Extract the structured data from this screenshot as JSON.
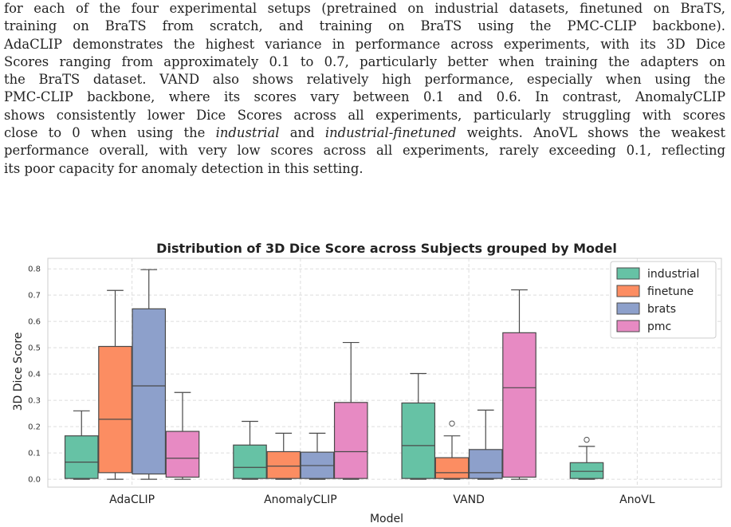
{
  "paragraph": {
    "lines": [
      [
        "for each of the four experimental setups (pretrained on industrial datasets, finetuned on BraTS,"
      ],
      [
        "training on BraTS from scratch, and training on BraTS using the PMC-CLIP backbone)."
      ],
      [
        "AdaCLIP demonstrates the highest variance in performance across experiments, with its 3D Dice"
      ],
      [
        "Scores ranging from approximately 0.1 to 0.7, particularly better when training the adapters on"
      ],
      [
        "the BraTS dataset. VAND also shows relatively high performance, especially when using the"
      ],
      [
        "PMC-CLIP backbone, where its scores vary between 0.1 and 0.6. In contrast, AnomalyCLIP"
      ],
      [
        "shows consistently lower Dice Scores across all experiments, particularly struggling with scores"
      ],
      [
        "close to 0 when using the ",
        "industrial",
        " and ",
        "industrial-finetuned",
        " weights. AnoVL shows the weakest"
      ],
      [
        "performance overall, with very low scores across all experiments, rarely exceeding 0.1, reflecting"
      ],
      [
        "its poor capacity for anomaly detection in this setting."
      ]
    ]
  },
  "chart_data": {
    "type": "box",
    "title": "Distribution of 3D Dice Score across Subjects grouped by Model",
    "xlabel": "Model",
    "ylabel": "3D Dice Score",
    "ylim": [
      -0.03,
      0.84
    ],
    "yticks": [
      "0.0",
      "0.1",
      "0.2",
      "0.3",
      "0.4",
      "0.5",
      "0.6",
      "0.7",
      "0.8"
    ],
    "ytick_values": [
      0.0,
      0.1,
      0.2,
      0.3,
      0.4,
      0.5,
      0.6,
      0.7,
      0.8
    ],
    "grid": true,
    "legend_position": "top-right",
    "categories": [
      "AdaCLIP",
      "AnomalyCLIP",
      "VAND",
      "AnoVL"
    ],
    "series": [
      {
        "name": "industrial",
        "color": "#66c2a5",
        "boxes": [
          {
            "whislo": 0.0,
            "q1": 0.003,
            "med": 0.065,
            "q3": 0.165,
            "whishi": 0.26,
            "fliers": []
          },
          {
            "whislo": 0.0,
            "q1": 0.003,
            "med": 0.045,
            "q3": 0.13,
            "whishi": 0.22,
            "fliers": []
          },
          {
            "whislo": 0.0,
            "q1": 0.003,
            "med": 0.128,
            "q3": 0.29,
            "whishi": 0.402,
            "fliers": []
          },
          {
            "whislo": 0.0,
            "q1": 0.003,
            "med": 0.03,
            "q3": 0.063,
            "whishi": 0.125,
            "fliers": [
              0.15
            ]
          }
        ]
      },
      {
        "name": "finetune",
        "color": "#fc8d62",
        "boxes": [
          {
            "whislo": 0.0,
            "q1": 0.025,
            "med": 0.228,
            "q3": 0.505,
            "whishi": 0.718,
            "fliers": []
          },
          {
            "whislo": 0.0,
            "q1": 0.003,
            "med": 0.05,
            "q3": 0.105,
            "whishi": 0.175,
            "fliers": []
          },
          {
            "whislo": 0.0,
            "q1": 0.003,
            "med": 0.025,
            "q3": 0.082,
            "whishi": 0.165,
            "fliers": [
              0.212
            ]
          },
          null
        ]
      },
      {
        "name": "brats",
        "color": "#8da0cb",
        "boxes": [
          {
            "whislo": 0.0,
            "q1": 0.02,
            "med": 0.355,
            "q3": 0.648,
            "whishi": 0.797,
            "fliers": []
          },
          {
            "whislo": 0.0,
            "q1": 0.003,
            "med": 0.052,
            "q3": 0.103,
            "whishi": 0.175,
            "fliers": []
          },
          {
            "whislo": 0.0,
            "q1": 0.003,
            "med": 0.025,
            "q3": 0.113,
            "whishi": 0.263,
            "fliers": []
          },
          null
        ]
      },
      {
        "name": "pmc",
        "color": "#e78ac3",
        "boxes": [
          {
            "whislo": 0.0,
            "q1": 0.008,
            "med": 0.08,
            "q3": 0.182,
            "whishi": 0.33,
            "fliers": []
          },
          {
            "whislo": 0.0,
            "q1": 0.003,
            "med": 0.105,
            "q3": 0.292,
            "whishi": 0.52,
            "fliers": []
          },
          {
            "whislo": 0.0,
            "q1": 0.008,
            "med": 0.348,
            "q3": 0.557,
            "whishi": 0.72,
            "fliers": []
          },
          null
        ]
      }
    ]
  }
}
